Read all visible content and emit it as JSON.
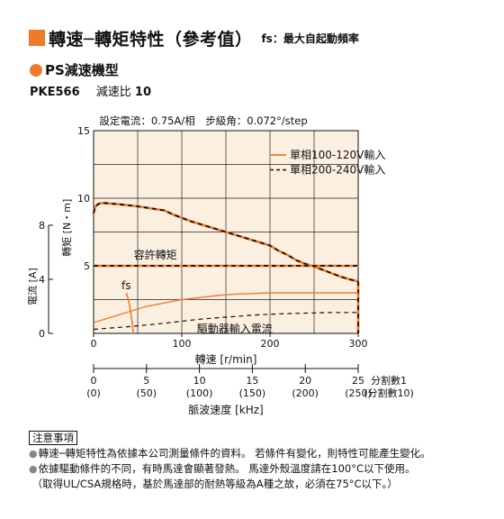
{
  "header": {
    "title": "轉速─轉矩特性（參考值）",
    "fs_label": "fs：",
    "fs_desc": "最大自起動頻率"
  },
  "subheader": {
    "title": "PS減速機型"
  },
  "model": {
    "name": "PKE566",
    "ratio_label": "減速比",
    "ratio_value": "10"
  },
  "colors": {
    "accent": "#f07a2a",
    "plot_bg": "#fbf0e0"
  },
  "chart_data": {
    "type": "line",
    "conditions": "設定電流：0.75A/相　步級角：0.072°/step",
    "xlabel": "轉速 [r/min]",
    "xlim": [
      0,
      300
    ],
    "x_ticks": [
      "0",
      "100",
      "200",
      "300"
    ],
    "ylabel_torque": "轉矩 [N・m]",
    "ylim_torque": [
      0,
      15
    ],
    "y_ticks_torque": [
      "5",
      "10",
      "15"
    ],
    "ylabel_current": "電流 [A]",
    "ylim_current": [
      0,
      8
    ],
    "y_ticks_current": [
      "0",
      "4",
      "8"
    ],
    "grid": true,
    "legend_position": "top-right",
    "series": [
      {
        "name": "單相100-120V輸入",
        "style": "solid",
        "color": "#f07a2a"
      },
      {
        "name": "單相200-240V輸入",
        "style": "dashed",
        "color": "#111111"
      }
    ],
    "torque": {
      "x": [
        0,
        2,
        6,
        12,
        20,
        30,
        50,
        70,
        80,
        90,
        110,
        130,
        150,
        170,
        190,
        200,
        210,
        220,
        230,
        240,
        250,
        260,
        270,
        280,
        290,
        300
      ],
      "y": [
        8.9,
        9.4,
        9.6,
        9.65,
        9.6,
        9.55,
        9.4,
        9.2,
        9.1,
        8.8,
        8.3,
        7.9,
        7.5,
        7.1,
        6.7,
        6.5,
        6.1,
        5.8,
        5.4,
        5.15,
        4.95,
        4.7,
        4.45,
        4.2,
        4.0,
        3.85
      ]
    },
    "allowable_torque": {
      "label": "容許轉矩",
      "value": 5,
      "x_range": [
        0,
        300
      ]
    },
    "current_100v": {
      "x": [
        0,
        20,
        40,
        60,
        80,
        100,
        120,
        140,
        160,
        180,
        200,
        300
      ],
      "y": [
        0.8,
        1.2,
        1.6,
        2.0,
        2.25,
        2.5,
        2.65,
        2.8,
        2.9,
        2.95,
        3.0,
        3.0
      ]
    },
    "current_200v": {
      "x": [
        0,
        20,
        40,
        60,
        80,
        100,
        120,
        150,
        180,
        210,
        240,
        270,
        300
      ],
      "y": [
        0.3,
        0.4,
        0.5,
        0.62,
        0.75,
        0.9,
        1.05,
        1.2,
        1.35,
        1.45,
        1.5,
        1.55,
        1.55
      ]
    },
    "current_label": "驅動器輸入電流",
    "fs_label": "fs",
    "fs_curve": {
      "x": [
        37,
        39,
        41,
        43,
        44,
        45
      ],
      "y": [
        3.0,
        2.6,
        2.0,
        1.2,
        0.6,
        0.0
      ]
    },
    "pulse_axis": {
      "label": "脈波速度 [kHz]",
      "ticks_top": [
        "0",
        "5",
        "10",
        "15",
        "20",
        "25"
      ],
      "ticks_bottom": [
        "(0)",
        "(50)",
        "(100)",
        "(150)",
        "(200)",
        "(250)"
      ],
      "label_top": "分割數1",
      "label_bottom": "(分割數10)",
      "max_khz": 25
    }
  },
  "notes": {
    "heading": "注意事項",
    "lines": [
      "轉速─轉矩特性為依據本公司測量條件的資料。 若條件有變化，則特性可能產生變化。",
      "依據驅動條件的不同，有時馬達會顯著發熱。 馬達外殼溫度請在100°C以下使用。",
      "（取得UL/CSA規格時，基於馬達部的耐熱等級為A種之故，必須在75°C以下。）"
    ]
  }
}
